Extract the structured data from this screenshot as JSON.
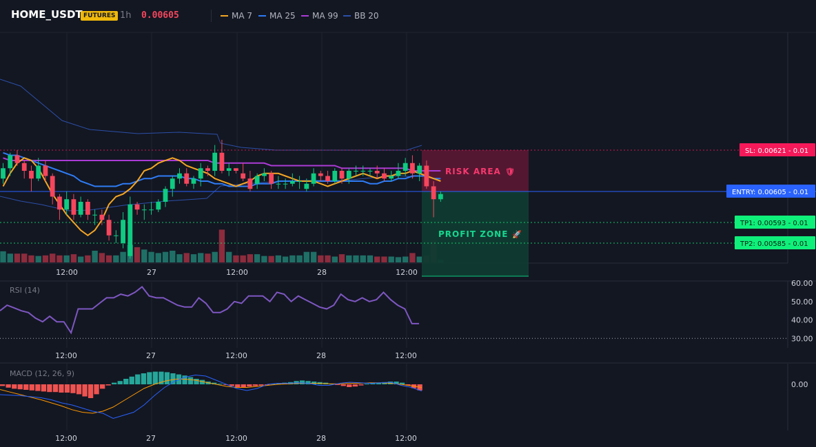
{
  "header": {
    "symbol": "HOME_USDT",
    "badge": "FUTURES",
    "timeframe": "1h",
    "price": "0.00605",
    "legend": [
      {
        "label": "MA 7",
        "color": "#f5a623"
      },
      {
        "label": "MA 25",
        "color": "#2f7cf6"
      },
      {
        "label": "MA 99",
        "color": "#ab3bd6"
      },
      {
        "label": "BB 20",
        "color": "#2c4fa8"
      }
    ]
  },
  "colors": {
    "up": "#0ecb81",
    "down": "#f6465d",
    "up_volume": "#1f6f66",
    "down_volume": "#8c2c3d"
  },
  "levels": {
    "sl": {
      "label": "SL: 0.00621 - 0.01",
      "value": 0.00621,
      "color": "#f5195a"
    },
    "entry": {
      "label": "ENTRY: 0.00605 - 0.01",
      "value": 0.00605,
      "color": "#2962ff"
    },
    "tp1": {
      "label": "TP1: 0.00593 - 0.01",
      "value": 0.00593,
      "color": "#0ff07a"
    },
    "tp2": {
      "label": "TP2: 0.00585 - 0.01",
      "value": 0.00585,
      "color": "#0ff07a"
    }
  },
  "zones": {
    "risk": {
      "label": "RISK AREA",
      "icon": "shield-icon",
      "icon_glyph": "🛡"
    },
    "profit": {
      "label": "PROFIT ZONE",
      "icon": "rocket-icon",
      "icon_glyph": "🚀"
    }
  },
  "chart_data": [
    {
      "type": "candlestick",
      "x_ticks": [
        "12:00",
        "27",
        "12:00",
        "28",
        "12:00"
      ],
      "ma7": [
        0.00607,
        0.00612,
        0.00616,
        0.00618,
        0.00617,
        0.00614,
        0.00609,
        0.00604,
        0.006,
        0.00596,
        0.00593,
        0.0059,
        0.00588,
        0.0059,
        0.00594,
        0.006,
        0.00603,
        0.00604,
        0.00606,
        0.00609,
        0.00613,
        0.00614,
        0.00616,
        0.00617,
        0.00618,
        0.00617,
        0.00615,
        0.00614,
        0.00613,
        0.00612,
        0.0061,
        0.00609,
        0.00608,
        0.00607,
        0.00608,
        0.00609,
        0.00611,
        0.00612,
        0.00612,
        0.00612,
        0.00611,
        0.0061,
        0.00609,
        0.00609,
        0.00609,
        0.00608,
        0.00607,
        0.00608,
        0.00609,
        0.0061,
        0.00611,
        0.00612,
        0.00611,
        0.0061,
        0.00611,
        0.00611,
        0.00612,
        0.00612,
        0.00613,
        0.00612,
        0.00611,
        0.0061,
        0.00609
      ],
      "ma25": [
        0.0062,
        0.00619,
        0.00619,
        0.00618,
        0.00617,
        0.00616,
        0.00615,
        0.00614,
        0.00613,
        0.00612,
        0.00611,
        0.00609,
        0.00608,
        0.00607,
        0.00607,
        0.00607,
        0.00607,
        0.00608,
        0.00608,
        0.00609,
        0.0061,
        0.0061,
        0.00611,
        0.00611,
        0.00611,
        0.00611,
        0.0061,
        0.0061,
        0.00609,
        0.00609,
        0.00608,
        0.00608,
        0.00607,
        0.00607,
        0.00607,
        0.00607,
        0.00608,
        0.00608,
        0.00608,
        0.00609,
        0.00609,
        0.00609,
        0.00609,
        0.00609,
        0.00609,
        0.00609,
        0.00609,
        0.00609,
        0.00609,
        0.00609,
        0.00609,
        0.00609,
        0.00608,
        0.00608,
        0.00609,
        0.00609,
        0.0061,
        0.0061,
        0.00611,
        0.00611,
        0.00611,
        0.0061,
        0.0061
      ],
      "ma99": [
        0.00618,
        0.00617,
        0.00617,
        0.00617,
        0.00617,
        0.00617,
        0.00617,
        0.00617,
        0.00617,
        0.00617,
        0.00617,
        0.00617,
        0.00617,
        0.00617,
        0.00617,
        0.00617,
        0.00617,
        0.00617,
        0.00617,
        0.00617,
        0.00617,
        0.00617,
        0.00617,
        0.00617,
        0.00617,
        0.00617,
        0.00617,
        0.00617,
        0.00617,
        0.00617,
        0.00616,
        0.00616,
        0.00616,
        0.00616,
        0.00616,
        0.00616,
        0.00616,
        0.00616,
        0.00615,
        0.00615,
        0.00615,
        0.00615,
        0.00615,
        0.00615,
        0.00615,
        0.00615,
        0.00615,
        0.00615,
        0.00614,
        0.00614,
        0.00614,
        0.00614,
        0.00614,
        0.00614,
        0.00614,
        0.00614,
        0.00614,
        0.00614,
        0.00613,
        0.00613,
        0.00613,
        0.00613,
        0.00613
      ],
      "bb_upper": [
        0.00646,
        0.00645,
        0.00645,
        0.00644,
        0.00643,
        0.00642,
        0.00641,
        0.00639,
        0.00638,
        0.00636,
        0.00635,
        0.00633,
        0.00632,
        0.00631,
        0.0063,
        0.00629,
        0.00628,
        0.00627,
        0.00626,
        0.00626,
        0.00625,
        0.00625,
        0.00625,
        0.00625,
        0.00625,
        0.00625,
        0.00625,
        0.00625,
        0.00625,
        0.00625,
        0.00623,
        0.00621,
        0.0062,
        0.00618,
        0.00617,
        0.00617,
        0.00617,
        0.00617,
        0.00617,
        0.00617,
        0.00617,
        0.00617,
        0.00617,
        0.00617,
        0.00617,
        0.00617,
        0.00617,
        0.00617,
        0.00617,
        0.00617,
        0.00617,
        0.00617,
        0.00617,
        0.00617,
        0.00617,
        0.00617,
        0.00617,
        0.00617,
        0.00617,
        0.00617,
        0.00617,
        0.00617,
        0.00617
      ],
      "bb_lower": [
        0.00601,
        0.00599,
        0.00597,
        0.00596,
        0.00595,
        0.00595,
        0.00594,
        0.00593,
        0.00593,
        0.00592,
        0.00591,
        0.00591,
        0.0059,
        0.0059,
        0.0059,
        0.0059,
        0.0059,
        0.0059,
        0.0059,
        0.00591,
        0.00592,
        0.00592,
        0.00593,
        0.00593,
        0.00594,
        0.00594,
        0.00595,
        0.00596,
        0.00597,
        0.00598,
        0.00599,
        0.00599,
        0.006,
        0.006,
        0.006,
        0.00601,
        0.00601,
        0.00601,
        0.00601,
        0.00601,
        0.00601,
        0.00602,
        0.00602,
        0.00602,
        0.00603,
        0.00603,
        0.00603,
        0.00603,
        0.00603,
        0.00603,
        0.00603,
        0.00603,
        0.00604,
        0.00604,
        0.00605,
        0.00605,
        0.00606,
        0.00606,
        0.00606,
        0.00606,
        0.00605,
        0.00605,
        0.00605
      ],
      "candles": [
        [
          0.0061,
          0.00614,
          0.00616,
          0.00608
        ],
        [
          0.00614,
          0.00619,
          0.0062,
          0.00611
        ],
        [
          0.00619,
          0.00616,
          0.00621,
          0.00615
        ],
        [
          0.00616,
          0.00613,
          0.00617,
          0.0061
        ],
        [
          0.00613,
          0.0061,
          0.00615,
          0.00605
        ],
        [
          0.0061,
          0.00615,
          0.00618,
          0.00609
        ],
        [
          0.00615,
          0.00611,
          0.00617,
          0.00609
        ],
        [
          0.00611,
          0.00603,
          0.00612,
          0.006
        ],
        [
          0.00603,
          0.00598,
          0.00604,
          0.00594
        ],
        [
          0.00598,
          0.00602,
          0.00605,
          0.00596
        ],
        [
          0.00602,
          0.00596,
          0.00604,
          0.00594
        ],
        [
          0.00596,
          0.00601,
          0.00603,
          0.00595
        ],
        [
          0.00601,
          0.00596,
          0.00602,
          0.00594
        ],
        [
          0.00596,
          0.00596,
          0.00598,
          0.00592
        ],
        [
          0.00596,
          0.00594,
          0.00598,
          0.00592
        ],
        [
          0.00594,
          0.00588,
          0.00596,
          0.00586
        ],
        [
          0.00588,
          0.00588,
          0.0059,
          0.00585
        ],
        [
          0.00585,
          0.00594,
          0.00597,
          0.00583
        ],
        [
          0.0058,
          0.006,
          0.00603,
          0.00579
        ],
        [
          0.006,
          0.00598,
          0.00601,
          0.00596
        ],
        [
          0.00598,
          0.00598,
          0.006,
          0.00594
        ],
        [
          0.00598,
          0.00598,
          0.00601,
          0.00596
        ],
        [
          0.00598,
          0.00601,
          0.00602,
          0.00597
        ],
        [
          0.00601,
          0.00606,
          0.00607,
          0.00599
        ],
        [
          0.00606,
          0.0061,
          0.00611,
          0.00603
        ],
        [
          0.0061,
          0.00612,
          0.00614,
          0.00608
        ],
        [
          0.00612,
          0.00608,
          0.00614,
          0.00607
        ],
        [
          0.00608,
          0.0061,
          0.00611,
          0.00606
        ],
        [
          0.0061,
          0.00614,
          0.00616,
          0.00607
        ],
        [
          0.00614,
          0.00613,
          0.00615,
          0.00611
        ],
        [
          0.00613,
          0.0062,
          0.00623,
          0.00611
        ],
        [
          0.0062,
          0.00613,
          0.00625,
          0.00612
        ],
        [
          0.00613,
          0.00614,
          0.00616,
          0.00611
        ],
        [
          0.00614,
          0.00613,
          0.00614,
          0.00612
        ],
        [
          0.00612,
          0.0061,
          0.00616,
          0.00609
        ],
        [
          0.0061,
          0.00606,
          0.00613,
          0.00605
        ],
        [
          0.00608,
          0.00611,
          0.00612,
          0.00606
        ],
        [
          0.00611,
          0.00612,
          0.00614,
          0.00609
        ],
        [
          0.00612,
          0.00608,
          0.00613,
          0.00606
        ],
        [
          0.00608,
          0.00608,
          0.00611,
          0.00606
        ],
        [
          0.00608,
          0.00608,
          0.0061,
          0.00606
        ],
        [
          0.00608,
          0.00609,
          0.00612,
          0.00607
        ],
        [
          0.00609,
          0.00609,
          0.00611,
          0.00606
        ],
        [
          0.00606,
          0.00608,
          0.0061,
          0.00605
        ],
        [
          0.00608,
          0.00612,
          0.00614,
          0.00607
        ],
        [
          0.00612,
          0.00611,
          0.00613,
          0.00609
        ],
        [
          0.00611,
          0.00609,
          0.00613,
          0.00608
        ],
        [
          0.00609,
          0.00613,
          0.00614,
          0.00608
        ],
        [
          0.00613,
          0.0061,
          0.00614,
          0.00608
        ],
        [
          0.0061,
          0.00613,
          0.00614,
          0.00608
        ],
        [
          0.00613,
          0.00613,
          0.00615,
          0.00611
        ],
        [
          0.00613,
          0.00613,
          0.00615,
          0.00611
        ],
        [
          0.00613,
          0.00613,
          0.00614,
          0.00611
        ],
        [
          0.00613,
          0.00612,
          0.00615,
          0.0061
        ],
        [
          0.00612,
          0.0061,
          0.00614,
          0.00609
        ],
        [
          0.0061,
          0.00611,
          0.00613,
          0.00609
        ],
        [
          0.00611,
          0.00613,
          0.00616,
          0.0061
        ],
        [
          0.00613,
          0.00616,
          0.00618,
          0.00611
        ],
        [
          0.00616,
          0.00612,
          0.00619,
          0.0061
        ],
        [
          0.00612,
          0.00615,
          0.00616,
          0.00609
        ],
        [
          0.00615,
          0.00607,
          0.00617,
          0.00606
        ],
        [
          0.00607,
          0.00602,
          0.00609,
          0.00595
        ],
        [
          0.00602,
          0.00604,
          0.00605,
          0.00601
        ]
      ],
      "volume": [
        0.95,
        0.75,
        0.75,
        0.75,
        0.6,
        0.55,
        0.6,
        0.75,
        0.6,
        0.6,
        0.7,
        0.5,
        0.6,
        1.0,
        0.8,
        0.6,
        0.6,
        0.9,
        1.5,
        1.3,
        1.1,
        0.9,
        0.8,
        0.9,
        1.0,
        0.7,
        0.8,
        0.7,
        0.8,
        0.75,
        0.9,
        2.8,
        0.9,
        0.6,
        0.6,
        0.7,
        0.7,
        0.55,
        0.55,
        0.6,
        0.5,
        0.6,
        0.6,
        0.9,
        0.9,
        0.6,
        0.6,
        0.5,
        0.7,
        0.6,
        0.6,
        0.6,
        0.6,
        0.5,
        0.5,
        0.5,
        0.45,
        0.5,
        0.8,
        0.5,
        0.6,
        1.9,
        0.2
      ]
    },
    {
      "type": "line",
      "title": "RSI (14)",
      "y_ticks": [
        "60.00",
        "50.00",
        "40.00",
        "30.00"
      ],
      "ylim": [
        27.5,
        60
      ],
      "values": [
        45,
        48,
        46.5,
        45,
        44,
        41,
        39,
        42,
        39,
        39,
        33,
        46,
        46,
        46,
        49,
        52,
        52,
        54,
        53,
        55,
        58,
        53,
        52,
        52,
        50,
        48,
        47,
        47,
        52,
        49,
        44,
        44,
        46,
        50,
        49,
        53,
        53,
        53,
        50,
        55,
        54,
        50,
        53,
        51,
        49,
        47,
        46,
        48,
        54,
        51,
        50,
        52,
        50,
        51,
        55,
        51,
        48,
        46,
        38,
        38
      ]
    },
    {
      "type": "bar",
      "title": "MACD (12, 26, 9)",
      "y_ticks": [
        "0.00"
      ],
      "histogram": [
        -0.3,
        -0.6,
        -0.8,
        -0.9,
        -1,
        -1.1,
        -1.2,
        -1.3,
        -1.4,
        -1.4,
        -1.5,
        -1.5,
        -1.6,
        -1.8,
        -2.2,
        -2.5,
        -1.8,
        -0.8,
        -0.2,
        0.3,
        0.6,
        1,
        1.4,
        1.8,
        2,
        2.2,
        2.3,
        2.3,
        2.2,
        2,
        1.8,
        1.6,
        1.3,
        1,
        0.8,
        0.5,
        0.3,
        0.1,
        -0.1,
        -0.3,
        -0.5,
        -0.5,
        -0.4,
        -0.3,
        -0.2,
        -0.1,
        0.1,
        0.2,
        0.3,
        0.4,
        0.6,
        0.7,
        0.6,
        0.5,
        0.4,
        0.3,
        0.1,
        -0.1,
        -0.3,
        -0.5,
        -0.4,
        -0.2,
        0.1,
        0.2,
        0.3,
        0.4,
        0.5,
        0.5,
        0.3,
        -0.2,
        -0.7,
        -1.1
      ],
      "macd_line": [
        -2,
        -2.1,
        -2.2,
        -2.4,
        -2.6,
        -3,
        -3.6,
        -4,
        -4.6,
        -5.2,
        -5.6,
        -6.6,
        -6,
        -5.4,
        -4,
        -2.2,
        -0.6,
        0.6,
        1.4,
        1.8,
        1.6,
        0.8,
        0,
        -0.8,
        -1.2,
        -0.8,
        0,
        0.2,
        0.2,
        0.3,
        0.2,
        -0.2,
        -0.2,
        0.2,
        0.4,
        0.3,
        0.2,
        0.3,
        0.4,
        -0.2,
        -0.6,
        -1.3
      ],
      "signal_line": [
        -1,
        -1.5,
        -2,
        -2.5,
        -3,
        -3.6,
        -4.2,
        -4.9,
        -5.4,
        -5.6,
        -5.2,
        -4.4,
        -3.2,
        -2,
        -0.8,
        0,
        0.6,
        1,
        1,
        0.8,
        0.4,
        0,
        -0.4,
        -0.6,
        -0.6,
        -0.4,
        -0.2,
        0,
        0.1,
        0.2,
        0.2,
        0.2,
        0.1,
        0.1,
        0.2,
        0.2,
        0.3,
        0.3,
        0.2,
        0,
        -0.3,
        -0.6
      ],
      "ylim": [
        -7,
        3
      ]
    }
  ]
}
